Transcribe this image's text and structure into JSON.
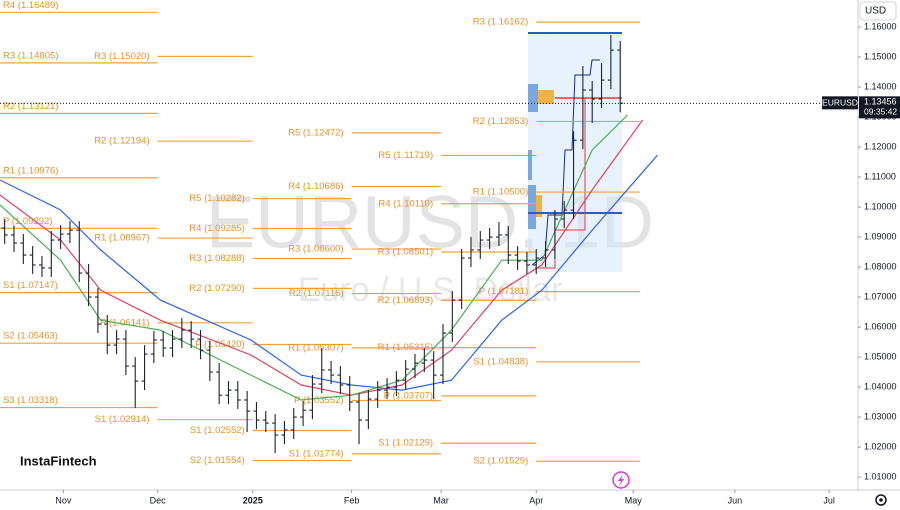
{
  "chart_data": {
    "type": "ohlc",
    "symbol": "EURUSD",
    "currency": "USD",
    "watermark_title": "EURUSD, 1D",
    "watermark_subtitle": "Euro / U.S. Dollar",
    "brand": "InstaFintech",
    "xlim": [
      0,
      92
    ],
    "ylim": [
      1.0057,
      1.169
    ],
    "xticks": [
      {
        "value": 6.8,
        "label": "Nov"
      },
      {
        "value": 16.9,
        "label": "Dec"
      },
      {
        "value": 27.1,
        "label": "2025"
      },
      {
        "value": 37.7,
        "label": "Feb"
      },
      {
        "value": 47.3,
        "label": "Mar"
      },
      {
        "value": 57.5,
        "label": "Apr"
      },
      {
        "value": 67.9,
        "label": "May"
      },
      {
        "value": 78.8,
        "label": "Jun"
      },
      {
        "value": 88.9,
        "label": "Jul"
      }
    ],
    "yticks": [
      {
        "value": 1.01,
        "label": "1.01000"
      },
      {
        "value": 1.02,
        "label": "1.02000"
      },
      {
        "value": 1.03,
        "label": "1.03000"
      },
      {
        "value": 1.04,
        "label": "1.04000"
      },
      {
        "value": 1.05,
        "label": "1.05000"
      },
      {
        "value": 1.06,
        "label": "1.06000"
      },
      {
        "value": 1.07,
        "label": "1.07000"
      },
      {
        "value": 1.08,
        "label": "1.08000"
      },
      {
        "value": 1.09,
        "label": "1.09000"
      },
      {
        "value": 1.1,
        "label": "1.10000"
      },
      {
        "value": 1.11,
        "label": "1.11000"
      },
      {
        "value": 1.12,
        "label": "1.12000"
      },
      {
        "value": 1.13,
        "label": "1.13000"
      },
      {
        "value": 1.14,
        "label": "1.14000"
      },
      {
        "value": 1.15,
        "label": "1.15000"
      },
      {
        "value": 1.16,
        "label": "1.16000"
      }
    ],
    "open": [
      1.093,
      1.0907,
      1.088,
      1.084,
      1.0807,
      1.0797,
      1.089,
      1.091,
      1.0923,
      1.078,
      1.07,
      1.061,
      1.054,
      1.056,
      1.047,
      1.042,
      1.051,
      1.0557,
      1.053,
      1.056,
      1.059,
      1.056,
      1.0523,
      1.045,
      1.0373,
      1.039,
      1.0357,
      1.032,
      1.029,
      1.028,
      1.024,
      1.0257,
      1.03,
      1.0323,
      1.041,
      1.0457,
      1.044,
      1.0407,
      1.035,
      1.029,
      1.036,
      1.039,
      1.04,
      1.0423,
      1.046,
      1.048,
      1.049,
      1.044,
      1.058,
      1.069,
      1.083,
      1.0857,
      1.089,
      1.09,
      1.0907,
      1.084,
      1.082,
      1.0807,
      1.083,
      1.0857,
      1.096,
      1.099,
      1.1223,
      1.139,
      1.136,
      1.1423,
      1.1523
    ],
    "high": [
      1.096,
      1.0937,
      1.091,
      1.087,
      1.0837,
      1.092,
      1.094,
      1.0953,
      1.0953,
      1.081,
      1.073,
      1.064,
      1.059,
      1.059,
      1.05,
      1.054,
      1.0587,
      1.0587,
      1.059,
      1.063,
      1.062,
      1.059,
      1.0553,
      1.048,
      1.042,
      1.042,
      1.0387,
      1.035,
      1.032,
      1.031,
      1.0287,
      1.033,
      1.0353,
      1.044,
      1.053,
      1.0487,
      1.047,
      1.0437,
      1.038,
      1.039,
      1.042,
      1.043,
      1.0453,
      1.049,
      1.051,
      1.053,
      1.052,
      1.061,
      1.072,
      1.086,
      1.09,
      1.092,
      1.093,
      1.095,
      1.0937,
      1.087,
      1.085,
      1.086,
      1.0887,
      1.099,
      1.102,
      1.1253,
      1.147,
      1.142,
      1.148,
      1.1573,
      1.1553
    ],
    "low": [
      1.0877,
      1.085,
      1.081,
      1.0777,
      1.0767,
      1.0767,
      1.086,
      1.088,
      1.075,
      1.067,
      1.058,
      1.051,
      1.051,
      1.044,
      1.033,
      1.039,
      1.048,
      1.05,
      1.05,
      1.053,
      1.053,
      1.0493,
      1.042,
      1.0343,
      1.0343,
      1.0327,
      1.025,
      1.026,
      1.025,
      1.018,
      1.021,
      1.0227,
      1.027,
      1.0293,
      1.038,
      1.041,
      1.0377,
      1.032,
      1.021,
      1.026,
      1.033,
      1.036,
      1.037,
      1.0393,
      1.043,
      1.045,
      1.036,
      1.041,
      1.055,
      1.066,
      1.08,
      1.0827,
      1.086,
      1.087,
      1.081,
      1.079,
      1.0777,
      1.0777,
      1.08,
      1.0827,
      1.093,
      1.096,
      1.1193,
      1.128,
      1.133,
      1.1393,
      1.1316
    ],
    "close": [
      1.0907,
      1.088,
      1.084,
      1.0807,
      1.0797,
      1.089,
      1.091,
      1.0923,
      1.078,
      1.07,
      1.061,
      1.054,
      1.056,
      1.047,
      1.042,
      1.051,
      1.0557,
      1.053,
      1.056,
      1.059,
      1.056,
      1.0523,
      1.045,
      1.0373,
      1.039,
      1.0357,
      1.032,
      1.029,
      1.028,
      1.024,
      1.0257,
      1.03,
      1.0323,
      1.041,
      1.0457,
      1.044,
      1.0407,
      1.035,
      1.029,
      1.036,
      1.039,
      1.04,
      1.0423,
      1.046,
      1.048,
      1.049,
      1.044,
      1.058,
      1.069,
      1.083,
      1.0857,
      1.089,
      1.09,
      1.0907,
      1.084,
      1.082,
      1.0807,
      1.083,
      1.0857,
      1.096,
      1.099,
      1.1223,
      1.139,
      1.136,
      1.1423,
      1.1523,
      1.1346
    ],
    "moving_averages": [
      {
        "color": "#2962ff",
        "x": [
          0,
          6.5,
          10.8,
          17.2,
          26.9,
          32.3,
          37.7,
          43.1,
          48.4,
          53.8,
          58.1,
          63.5,
          70.5
        ],
        "values": [
          1.109,
          1.099,
          1.0857,
          1.069,
          1.0557,
          1.044,
          1.0407,
          1.039,
          1.0423,
          1.0623,
          1.0723,
          1.0923,
          1.1173
        ]
      },
      {
        "color": "#e0405e",
        "x": [
          0,
          6.5,
          10.8,
          17.2,
          26.9,
          32.3,
          37.7,
          43.1,
          48.4,
          53.8,
          58.1,
          63.5,
          68.9
        ],
        "values": [
          1.104,
          1.089,
          1.0723,
          1.0623,
          1.0507,
          1.0407,
          1.0373,
          1.0407,
          1.0523,
          1.0723,
          1.0807,
          1.1057,
          1.129
        ]
      },
      {
        "color": "#4caf50",
        "x": [
          0,
          6.5,
          10.8,
          17.2,
          26.9,
          32.3,
          37.7,
          43.1,
          48.4,
          53.8,
          58.1,
          63.5,
          67.3
        ],
        "values": [
          1.1007,
          1.0823,
          1.0623,
          1.059,
          1.044,
          1.0357,
          1.0373,
          1.0423,
          1.059,
          1.0823,
          1.0823,
          1.119,
          1.1307
        ]
      }
    ],
    "pivots": [
      {
        "period": [
          0,
          16.9
        ],
        "levels": [
          {
            "value": 1.16489,
            "label": "R4 (1.16489)"
          },
          {
            "value": 1.14805,
            "label": "R3 (1.14805)"
          },
          {
            "value": 1.13121,
            "label": "R2 (1.13121)"
          },
          {
            "value": 1.10976,
            "label": "R1 (1.10976)"
          },
          {
            "value": 1.09292,
            "label": "P (1.09292)"
          },
          {
            "value": 1.07147,
            "label": "S1 (1.07147)"
          },
          {
            "value": 1.05463,
            "label": "S2 (1.05463)"
          },
          {
            "value": 1.03318,
            "label": "S3 (1.03318)"
          }
        ]
      },
      {
        "period": [
          16.9,
          27.1
        ],
        "levels": [
          {
            "value": 1.1502,
            "label": "R3 (1.15020)"
          },
          {
            "value": 1.12194,
            "label": "R2 (1.12194)"
          },
          {
            "value": 1.08967,
            "label": "R1 (1.08967)"
          },
          {
            "value": 1.06141,
            "label": "P (1.06141)"
          },
          {
            "value": 1.02914,
            "label": "S1 (1.02914)"
          }
        ]
      },
      {
        "period": [
          27.1,
          37.7
        ],
        "levels": [
          {
            "value": 1.10282,
            "label": "R5 (1.10282)"
          },
          {
            "value": 1.09285,
            "label": "R4 (1.09285)"
          },
          {
            "value": 1.08288,
            "label": "R3 (1.08288)"
          },
          {
            "value": 1.0729,
            "label": "R2 (1.07290)"
          },
          {
            "value": 1.0542,
            "label": "P (1.05420)"
          },
          {
            "value": 1.02552,
            "label": "S1 (1.02552)"
          },
          {
            "value": 1.01554,
            "label": "S2 (1.01554)"
          }
        ]
      },
      {
        "period": [
          37.7,
          47.3
        ],
        "levels": [
          {
            "value": 1.12472,
            "label": "R5 (1.12472)"
          },
          {
            "value": 1.10686,
            "label": "R4 (1.10686)"
          },
          {
            "value": 1.086,
            "label": "R3 (1.08600)"
          },
          {
            "value": 1.07116,
            "label": "R2 (1.07116)"
          },
          {
            "value": 1.05307,
            "label": "R1 (1.05307)"
          },
          {
            "value": 1.03552,
            "label": "P (1.03552)"
          },
          {
            "value": 1.01774,
            "label": "S1 (1.01774)"
          }
        ]
      },
      {
        "period": [
          47.3,
          57.5
        ],
        "levels": [
          {
            "value": 1.11719,
            "label": "R5 (1.11719)"
          },
          {
            "value": 1.1011,
            "label": "R4 (1.10110)"
          },
          {
            "value": 1.08501,
            "label": "R3 (1.08501)"
          },
          {
            "value": 1.06893,
            "label": "R2 (1.06893)"
          },
          {
            "value": 1.05315,
            "label": "R1 (1.05315)"
          },
          {
            "value": 1.03707,
            "label": "P (1.03707)"
          },
          {
            "value": 1.02129,
            "label": "S1 (1.02129)"
          }
        ]
      },
      {
        "period": [
          57.5,
          68.6
        ],
        "levels": [
          {
            "value": 1.16162,
            "label": "R3 (1.16162)"
          },
          {
            "value": 1.12853,
            "label": "R2 (1.12853)"
          },
          {
            "value": 1.105,
            "label": "R1 (1.10500)"
          },
          {
            "value": 1.07181,
            "label": "P (1.07181)"
          },
          {
            "value": 1.04838,
            "label": "S1 (1.04838)"
          },
          {
            "value": 1.01529,
            "label": "S2 (1.01529)"
          }
        ]
      }
    ],
    "last_price": {
      "value": 1.13456,
      "countdown": "09:35:42"
    }
  }
}
